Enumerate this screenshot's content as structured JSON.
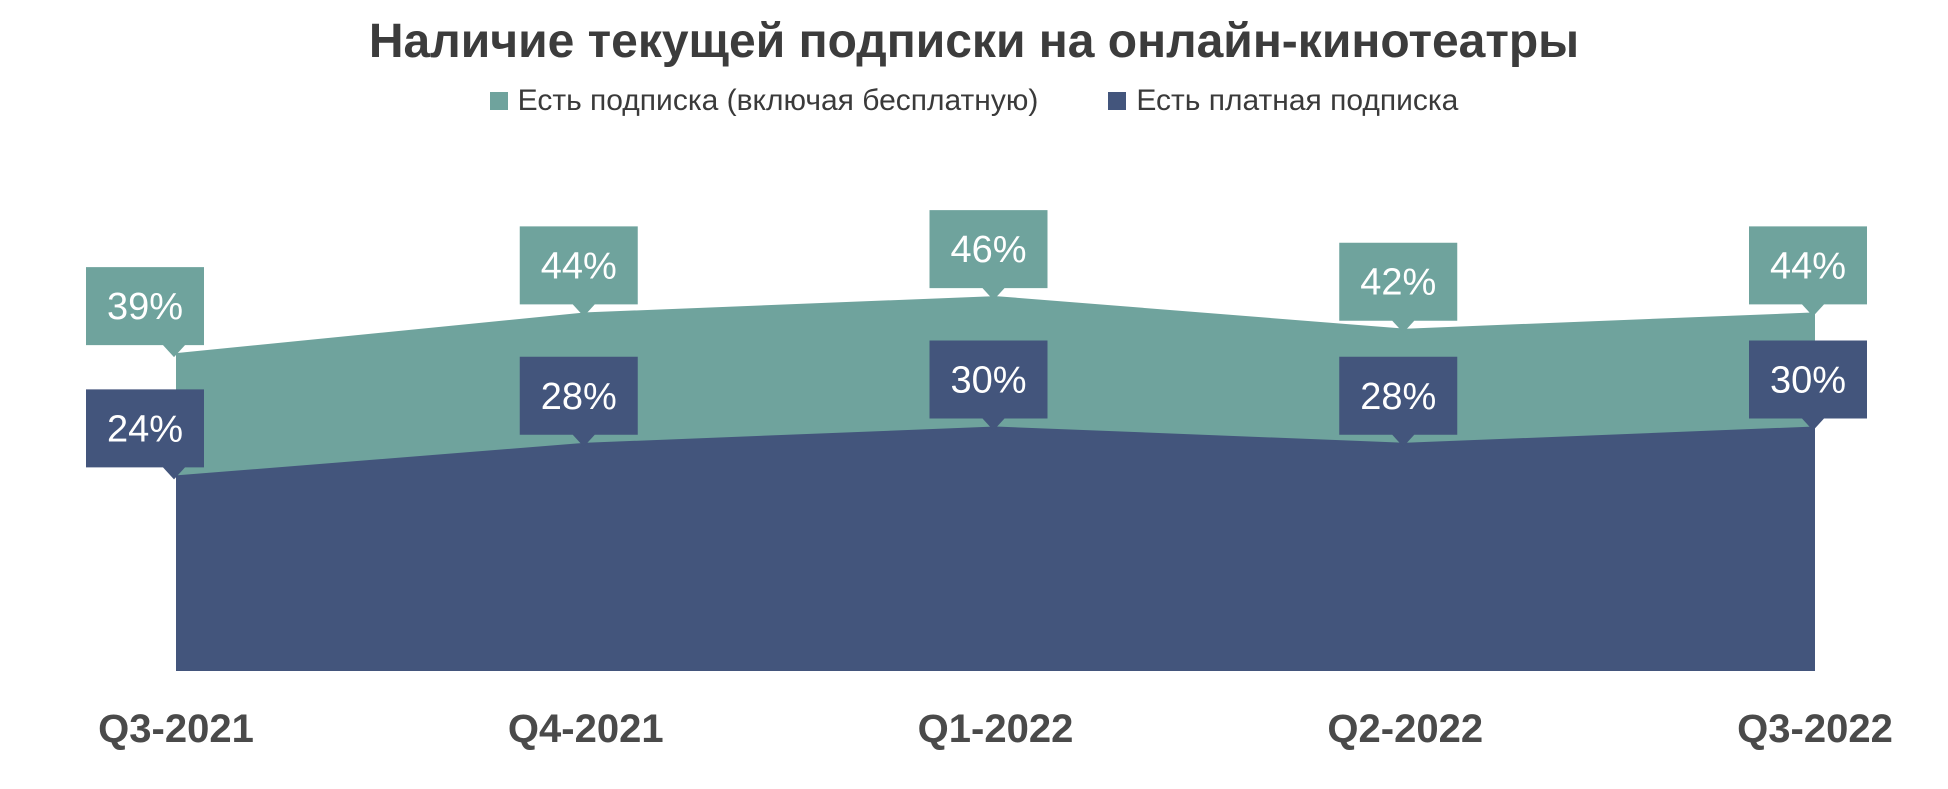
{
  "chart_data": {
    "type": "area",
    "title": "Наличие текущей подписки на онлайн-кинотеатры",
    "categories": [
      "Q3-2021",
      "Q4-2021",
      "Q1-2022",
      "Q2-2022",
      "Q3-2022"
    ],
    "series": [
      {
        "name": "Есть подписка (включая бесплатную)",
        "values": [
          39,
          44,
          46,
          42,
          44
        ],
        "labels": [
          "39%",
          "44%",
          "46%",
          "42%",
          "44%"
        ],
        "color": "#6fa39d"
      },
      {
        "name": "Есть платная подписка",
        "values": [
          24,
          28,
          30,
          28,
          30
        ],
        "labels": [
          "24%",
          "28%",
          "30%",
          "28%",
          "30%"
        ],
        "color": "#43557c"
      }
    ],
    "ylim": [
      0,
      50
    ],
    "grid": false,
    "legend_position": "top-center"
  }
}
